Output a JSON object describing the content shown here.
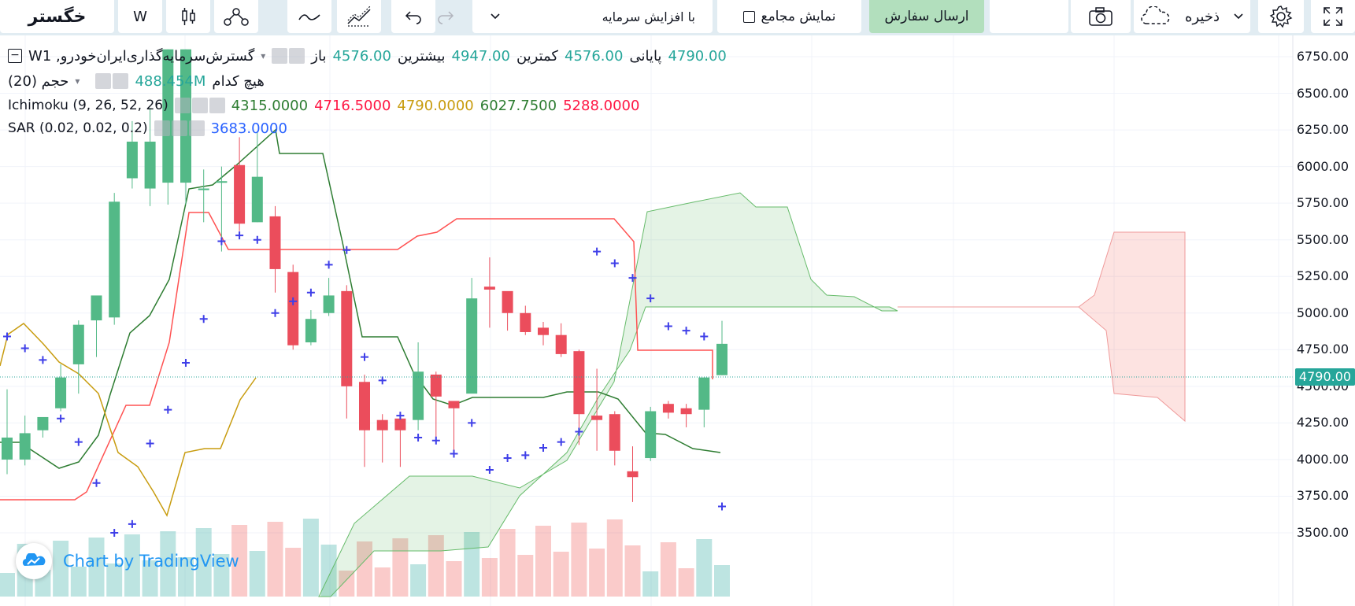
{
  "toolbar": {
    "logo": "خگستر",
    "interval": "W",
    "add_capital_label": "با افزایش سرمایه",
    "cumulative_label": "نمایش مجامع",
    "send_order_label": "ارسال سفارش",
    "save_label": "ذخیره"
  },
  "legend": {
    "symbol_title": "Wگسترش‌سرمایه‌گذاری‌ایران‌خودرو, 1",
    "open_label": "باز",
    "open_value": "4576.00",
    "high_label": "بیشترین",
    "high_value": "4947.00",
    "low_label": "کمترین",
    "low_value": "4576.00",
    "close_label": "پایانی",
    "close_value": "4790.00",
    "volume_name": "حجم (20)",
    "volume_none": "هیچ کدام",
    "volume_value": "488.454M",
    "ichimoku_name": "Ichimoku (9, 26, 52, 26)",
    "ichimoku_values": [
      "4315.0000",
      "4716.5000",
      "4790.0000",
      "6027.7500",
      "5288.0000"
    ],
    "sar_name": "SAR (0.02, 0.02, 0.2)",
    "sar_value": "3683.0000"
  },
  "price_axis": {
    "ticks": [
      "6750.00",
      "6500.00",
      "6250.00",
      "6000.00",
      "5750.00",
      "5500.00",
      "5250.00",
      "5000.00",
      "4750.00",
      "4500.00",
      "4250.00",
      "4000.00",
      "3750.00",
      "3500.00"
    ],
    "current_price": "4790.00"
  },
  "watermark": "Chart by TradingView",
  "colors": {
    "up": "#26a69a",
    "up_body": "#53b987",
    "down": "#ef5350",
    "down_body": "#eb4d5c",
    "tenkan": "#2e7d32",
    "kijun": "#ff5252",
    "chikou": "#c89c0f",
    "sar": "#3f3fe8",
    "cloud_green": "rgba(76,175,80,0.15)",
    "cloud_red": "rgba(244,67,54,0.15)"
  },
  "chart_data": {
    "type": "candlestick",
    "series_ohlc": [
      {
        "o": 4000,
        "h": 4480,
        "l": 3900,
        "c": 4150
      },
      {
        "o": 4000,
        "h": 4300,
        "l": 3960,
        "c": 4180
      },
      {
        "o": 4200,
        "h": 4280,
        "l": 4150,
        "c": 4290
      },
      {
        "o": 4350,
        "h": 4650,
        "l": 4330,
        "c": 4560
      },
      {
        "o": 4650,
        "h": 4950,
        "l": 4450,
        "c": 4920
      },
      {
        "o": 4950,
        "h": 5100,
        "l": 4700,
        "c": 5120
      },
      {
        "o": 4970,
        "h": 5820,
        "l": 4920,
        "c": 5760
      },
      {
        "o": 5920,
        "h": 6310,
        "l": 5850,
        "c": 6170
      },
      {
        "o": 5850,
        "h": 6400,
        "l": 5730,
        "c": 6170
      },
      {
        "o": 5890,
        "h": 6800,
        "l": 5740,
        "c": 6800
      },
      {
        "o": 5890,
        "h": 6800,
        "l": 5740,
        "c": 6800
      },
      {
        "o": 5850,
        "h": 5980,
        "l": 5620,
        "c": 5850
      },
      {
        "o": 5900,
        "h": 6000,
        "l": 5420,
        "c": 5900
      },
      {
        "o": 6010,
        "h": 6200,
        "l": 5560,
        "c": 5610
      },
      {
        "o": 5620,
        "h": 6240,
        "l": 5620,
        "c": 5930
      },
      {
        "o": 5660,
        "h": 5730,
        "l": 5140,
        "c": 5300
      },
      {
        "o": 5280,
        "h": 5330,
        "l": 4750,
        "c": 4780
      },
      {
        "o": 4800,
        "h": 5020,
        "l": 4780,
        "c": 4960
      },
      {
        "o": 5000,
        "h": 5240,
        "l": 4980,
        "c": 5120
      },
      {
        "o": 5150,
        "h": 5190,
        "l": 4280,
        "c": 4500
      },
      {
        "o": 4530,
        "h": 4580,
        "l": 3950,
        "c": 4200
      },
      {
        "o": 4270,
        "h": 4310,
        "l": 3980,
        "c": 4200
      },
      {
        "o": 4280,
        "h": 4320,
        "l": 3950,
        "c": 4200
      },
      {
        "o": 4270,
        "h": 4800,
        "l": 4200,
        "c": 4600
      },
      {
        "o": 4580,
        "h": 4600,
        "l": 4120,
        "c": 4430
      },
      {
        "o": 4400,
        "h": 4380,
        "l": 4020,
        "c": 4350
      },
      {
        "o": 4450,
        "h": 5240,
        "l": 4500,
        "c": 5100
      },
      {
        "o": 5180,
        "h": 5380,
        "l": 4900,
        "c": 5160
      },
      {
        "o": 5150,
        "h": 5120,
        "l": 4880,
        "c": 5000
      },
      {
        "o": 5000,
        "h": 5050,
        "l": 4850,
        "c": 4870
      },
      {
        "o": 4900,
        "h": 4940,
        "l": 4780,
        "c": 4850
      },
      {
        "o": 4850,
        "h": 4930,
        "l": 4700,
        "c": 4720
      },
      {
        "o": 4740,
        "h": 4750,
        "l": 4100,
        "c": 4310
      },
      {
        "o": 4300,
        "h": 4620,
        "l": 4060,
        "c": 4270
      },
      {
        "o": 4310,
        "h": 4330,
        "l": 3960,
        "c": 4060
      },
      {
        "o": 3920,
        "h": 4090,
        "l": 3710,
        "c": 3880
      },
      {
        "o": 4010,
        "h": 4360,
        "l": 3990,
        "c": 4330
      },
      {
        "o": 4380,
        "h": 4400,
        "l": 4280,
        "c": 4320
      },
      {
        "o": 4350,
        "h": 4380,
        "l": 4220,
        "c": 4310
      },
      {
        "o": 4340,
        "h": 4560,
        "l": 4220,
        "c": 4560
      },
      {
        "o": 4576,
        "h": 4947,
        "l": 4576,
        "c": 4790
      }
    ],
    "sar_points": [
      4840,
      4760,
      4680,
      4280,
      4120,
      3840,
      3500,
      3560,
      4110,
      4340,
      4660,
      4960,
      5490,
      5530,
      5500,
      5000,
      5080,
      5140,
      5330,
      5430,
      4700,
      4540,
      4300,
      4150,
      4130,
      4040,
      4250,
      3930,
      4010,
      4030,
      4080,
      4120,
      4190,
      5420,
      5340,
      5240,
      5100,
      4910,
      4880,
      4840,
      3680
    ],
    "ylim": [
      3420,
      6850
    ],
    "ylabel": "",
    "xlabel": ""
  }
}
